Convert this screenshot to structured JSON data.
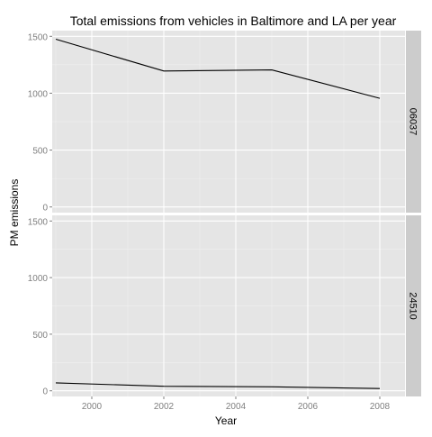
{
  "chart_data": {
    "type": "line",
    "title": "Total emissions from vehicles in Baltimore and LA per year",
    "xlabel": "Year",
    "ylabel": "PM emissions",
    "x_ticks": [
      2000,
      2002,
      2004,
      2006,
      2008
    ],
    "y_ticks": [
      0,
      500,
      1000,
      1500
    ],
    "xlim": [
      1998.9,
      2008.7
    ],
    "ylim": [
      -50,
      1550
    ],
    "grid": true,
    "facet_layout": "vertical",
    "facets": [
      {
        "strip_label": "06037",
        "series": [
          {
            "x": [
              1999,
              2002,
              2005,
              2008
            ],
            "values": [
              1475,
              1195,
              1205,
              955
            ]
          }
        ]
      },
      {
        "strip_label": "24510",
        "series": [
          {
            "x": [
              1999,
              2002,
              2005,
              2008
            ],
            "values": [
              70,
              40,
              35,
              20
            ]
          }
        ]
      }
    ],
    "colors": {
      "panel_bg": "#e5e5e5",
      "grid_major": "#ffffff",
      "grid_minor": "#f2f2f2",
      "strip_bg": "#cccccc",
      "line": "#000000",
      "tick_text": "#7f7f7f",
      "text": "#000000"
    }
  }
}
